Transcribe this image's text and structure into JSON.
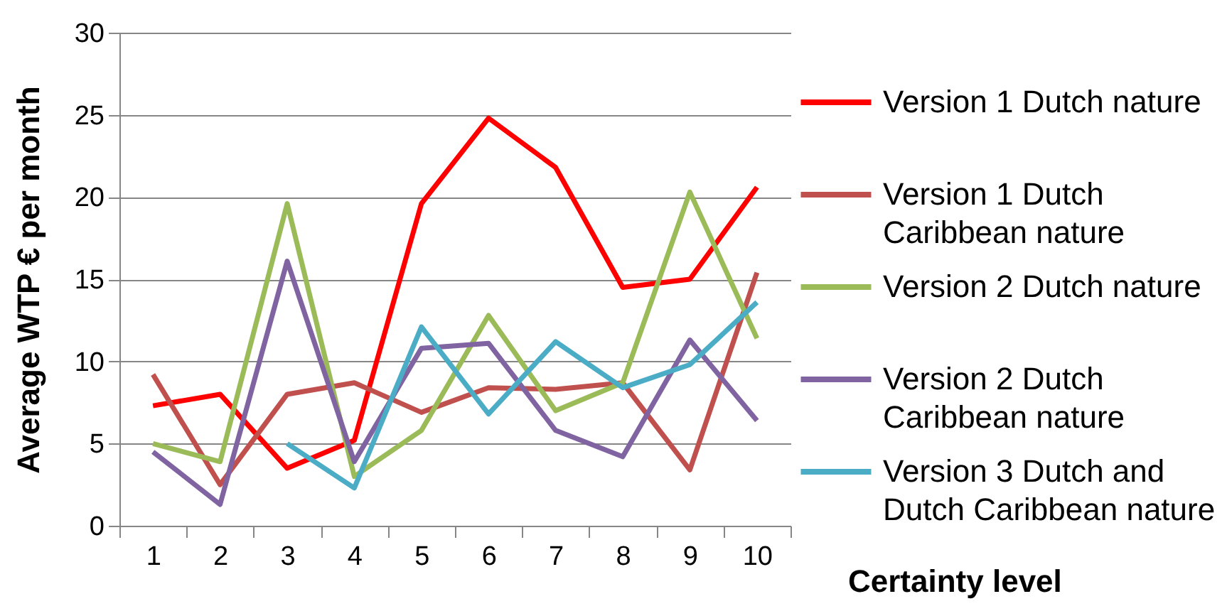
{
  "chart_data": {
    "type": "line",
    "xlabel": "Certainty level",
    "ylabel": "Average WTP € per month",
    "categories": [
      "1",
      "2",
      "3",
      "4",
      "5",
      "6",
      "7",
      "8",
      "9",
      "10"
    ],
    "series": [
      {
        "name": "Version 1 Dutch nature",
        "color": "#ff0000",
        "values": [
          7.3,
          8.0,
          3.5,
          5.2,
          19.6,
          24.8,
          21.8,
          14.5,
          15.0,
          20.6
        ]
      },
      {
        "name": "Version 1 Dutch Caribbean nature",
        "color": "#c0504d",
        "values": [
          9.2,
          2.5,
          8.0,
          8.7,
          6.9,
          8.4,
          8.3,
          8.7,
          3.4,
          15.4
        ]
      },
      {
        "name": "Version 2 Dutch nature",
        "color": "#9bbb59",
        "values": [
          5.0,
          3.9,
          19.6,
          3.0,
          5.8,
          12.8,
          7.0,
          8.7,
          20.3,
          11.4
        ]
      },
      {
        "name": "Version 2 Dutch Caribbean nature",
        "color": "#8064a2",
        "values": [
          4.5,
          1.3,
          16.1,
          3.9,
          10.8,
          11.1,
          5.8,
          4.2,
          11.3,
          6.4
        ]
      },
      {
        "name": "Version 3 Dutch and Dutch Caribbean nature",
        "color": "#4bacc6",
        "values": [
          null,
          null,
          5.0,
          2.3,
          12.1,
          6.8,
          11.2,
          8.4,
          9.8,
          13.6
        ]
      }
    ],
    "ylim": [
      0,
      30
    ],
    "yticks": [
      0,
      5,
      10,
      15,
      20,
      25,
      30
    ],
    "grid": "y",
    "legend": "right"
  }
}
